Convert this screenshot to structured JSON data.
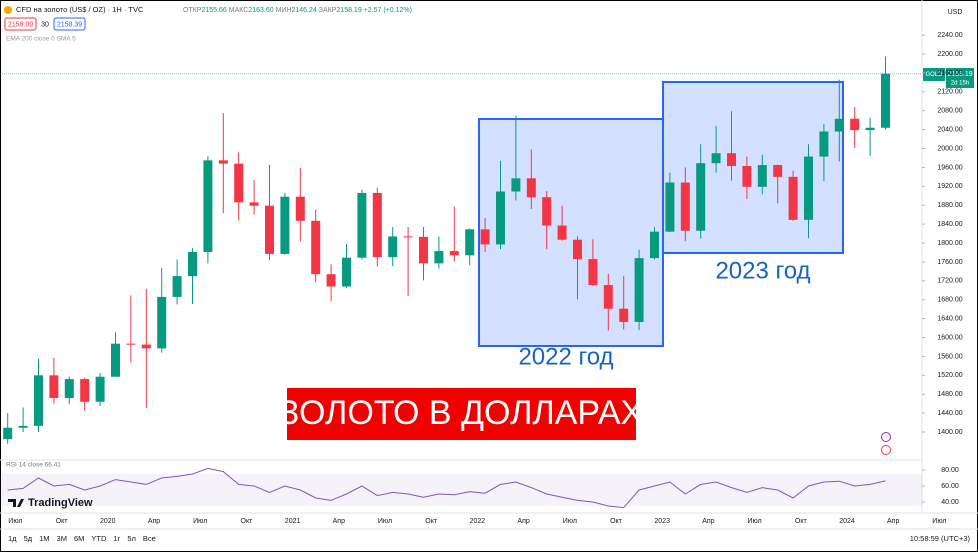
{
  "header": {
    "title": "CFD на золото (US$ / OZ) · 1H · TVC",
    "ohlc": [
      "ОТКР",
      "2155.66",
      "МАКС",
      "2163.60",
      "МИН",
      "2146.24",
      "ЗАКР",
      "2158.19",
      "+2.57 (+0.12%)"
    ],
    "sell": "2158.09",
    "spread": "30",
    "buy": "2158.39",
    "indicators": "EMA 200 close 0 SMA 5"
  },
  "annotations": {
    "box_2022": "2022 год",
    "box_2023": "2023 год",
    "banner": "ЗОЛОТО В ДОЛЛАРАХ"
  },
  "price_tag": {
    "symbol": "GOLD",
    "price": "2158.19",
    "countdown": "2d 15h"
  },
  "rsi_label": "RSI 14 close 66.41",
  "logo": "TradingView",
  "toolbar": {
    "ranges": [
      "1д",
      "5д",
      "1М",
      "3М",
      "6М",
      "YTD",
      "1г",
      "5л",
      "Все"
    ],
    "clock": "10:58:59 (UTC+3)"
  },
  "chart_data": {
    "type": "candlestick",
    "categories": [
      null,
      "Июл",
      null,
      null,
      "Окт",
      null,
      null,
      "2020",
      null,
      null,
      "Апр",
      null,
      null,
      "Июл",
      null,
      null,
      "Окт",
      null,
      null,
      "2021",
      null,
      null,
      "Апр",
      null,
      null,
      "Июл",
      null,
      null,
      "Окт",
      null,
      null,
      "2022",
      null,
      null,
      "Апр",
      null,
      null,
      "Июл",
      null,
      null,
      "Окт",
      null,
      null,
      "2023",
      null,
      null,
      "Апр",
      null,
      null,
      "Июл",
      null,
      null,
      "Окт",
      null,
      null,
      "2024",
      null,
      null,
      "Апр",
      null,
      null,
      "Июл"
    ],
    "open": [
      1385,
      1409,
      1413,
      1520,
      1472,
      1512,
      1464,
      1517,
      1587,
      1585,
      1577,
      1686,
      1730,
      1781,
      1975,
      1968,
      1886,
      1879,
      1777,
      1898,
      1847,
      1734,
      1708,
      1769,
      1906,
      1770,
      1814,
      1813,
      1757,
      1783,
      1774,
      1829,
      1797,
      1909,
      1937,
      1897,
      1837,
      1807,
      1766,
      1711,
      1661,
      1633,
      1768,
      1824,
      1928,
      1826,
      1969,
      1990,
      1963,
      1919,
      1965,
      1940,
      1849,
      1983,
      2036,
      2063,
      2039,
      2044,
      null,
      null,
      null,
      null
    ],
    "high": [
      1440,
      1452,
      1555,
      1557,
      1517,
      1515,
      1525,
      1611,
      1689,
      1703,
      1747,
      1765,
      1789,
      1984,
      2075,
      1992,
      1933,
      1965,
      1906,
      1959,
      1871,
      1755,
      1798,
      1913,
      1917,
      1834,
      1834,
      1834,
      1814,
      1877,
      1831,
      1853,
      1974,
      2070,
      1998,
      1910,
      1879,
      1814,
      1808,
      1735,
      1730,
      1786,
      1833,
      1949,
      1960,
      2009,
      2048,
      2079,
      1983,
      1987,
      1966,
      1953,
      2009,
      2052,
      2146,
      2088,
      2065,
      2195,
      null,
      null,
      null,
      null
    ],
    "low": [
      1375,
      1400,
      1400,
      1460,
      1459,
      1445,
      1455,
      1517,
      1547,
      1451,
      1568,
      1670,
      1671,
      1757,
      1863,
      1848,
      1860,
      1764,
      1775,
      1803,
      1717,
      1677,
      1705,
      1765,
      1750,
      1751,
      1688,
      1721,
      1746,
      1761,
      1753,
      1781,
      1787,
      1890,
      1872,
      1787,
      1805,
      1681,
      1709,
      1615,
      1617,
      1616,
      1765,
      1823,
      1804,
      1809,
      1949,
      1932,
      1893,
      1903,
      1884,
      1847,
      1810,
      1931,
      1973,
      2001,
      1984,
      2040,
      null,
      null,
      null,
      null
    ],
    "close": [
      1409,
      1413,
      1520,
      1472,
      1512,
      1464,
      1517,
      1587,
      1585,
      1577,
      1686,
      1730,
      1781,
      1975,
      1968,
      1886,
      1879,
      1777,
      1898,
      1847,
      1734,
      1708,
      1769,
      1906,
      1770,
      1814,
      1813,
      1757,
      1783,
      1774,
      1829,
      1797,
      1909,
      1937,
      1897,
      1837,
      1807,
      1766,
      1711,
      1661,
      1633,
      1768,
      1824,
      1928,
      1826,
      1969,
      1990,
      1963,
      1919,
      1965,
      1940,
      1849,
      1983,
      2036,
      2063,
      2039,
      2044,
      2158.19,
      null,
      null,
      null,
      null
    ],
    "up_color": "#089981",
    "down_color": "#f23645",
    "ylim": [
      1345,
      2308
    ],
    "yticks": [
      {
        "value": 1400,
        "label": "1400.00"
      },
      {
        "value": 1440,
        "label": "1440.00"
      },
      {
        "value": 1480,
        "label": "1480.00"
      },
      {
        "value": 1520,
        "label": "1520.00"
      },
      {
        "value": 1560,
        "label": "1560.00"
      },
      {
        "value": 1600,
        "label": "1600.00"
      },
      {
        "value": 1640,
        "label": "1640.00"
      },
      {
        "value": 1680,
        "label": "1680.00"
      },
      {
        "value": 1720,
        "label": "1720.00"
      },
      {
        "value": 1760,
        "label": "1760.00"
      },
      {
        "value": 1800,
        "label": "1800.00"
      },
      {
        "value": 1840,
        "label": "1840.00"
      },
      {
        "value": 1880,
        "label": "1880.00"
      },
      {
        "value": 1920,
        "label": "1920.00"
      },
      {
        "value": 1960,
        "label": "1960.00"
      },
      {
        "value": 2000,
        "label": "2000.00"
      },
      {
        "value": 2040,
        "label": "2040.00"
      },
      {
        "value": 2080,
        "label": "2080.00"
      },
      {
        "value": 2120,
        "label": "2120.00"
      },
      {
        "value": 2160,
        "label": "2160.00"
      },
      {
        "value": 2200,
        "label": "2200.00"
      },
      {
        "value": 2240,
        "label": "2240.00"
      }
    ],
    "grid": false,
    "rsi": {
      "color": "#7e57c2",
      "values": [
        55,
        57,
        70,
        60,
        62,
        55,
        60,
        68,
        65,
        62,
        70,
        72,
        75,
        82,
        78,
        62,
        60,
        52,
        60,
        55,
        45,
        42,
        50,
        60,
        48,
        52,
        50,
        46,
        50,
        49,
        53,
        51,
        62,
        65,
        58,
        50,
        46,
        42,
        40,
        35,
        33,
        55,
        60,
        65,
        50,
        62,
        65,
        58,
        52,
        58,
        55,
        45,
        60,
        65,
        66,
        60,
        62,
        66.41,
        null,
        null,
        null,
        null
      ],
      "ylim": [
        30,
        90
      ],
      "yticks": [
        {
          "value": 80,
          "label": "80.00"
        },
        {
          "value": 60,
          "label": "60.00"
        },
        {
          "value": 40,
          "label": "40.00"
        }
      ]
    }
  }
}
